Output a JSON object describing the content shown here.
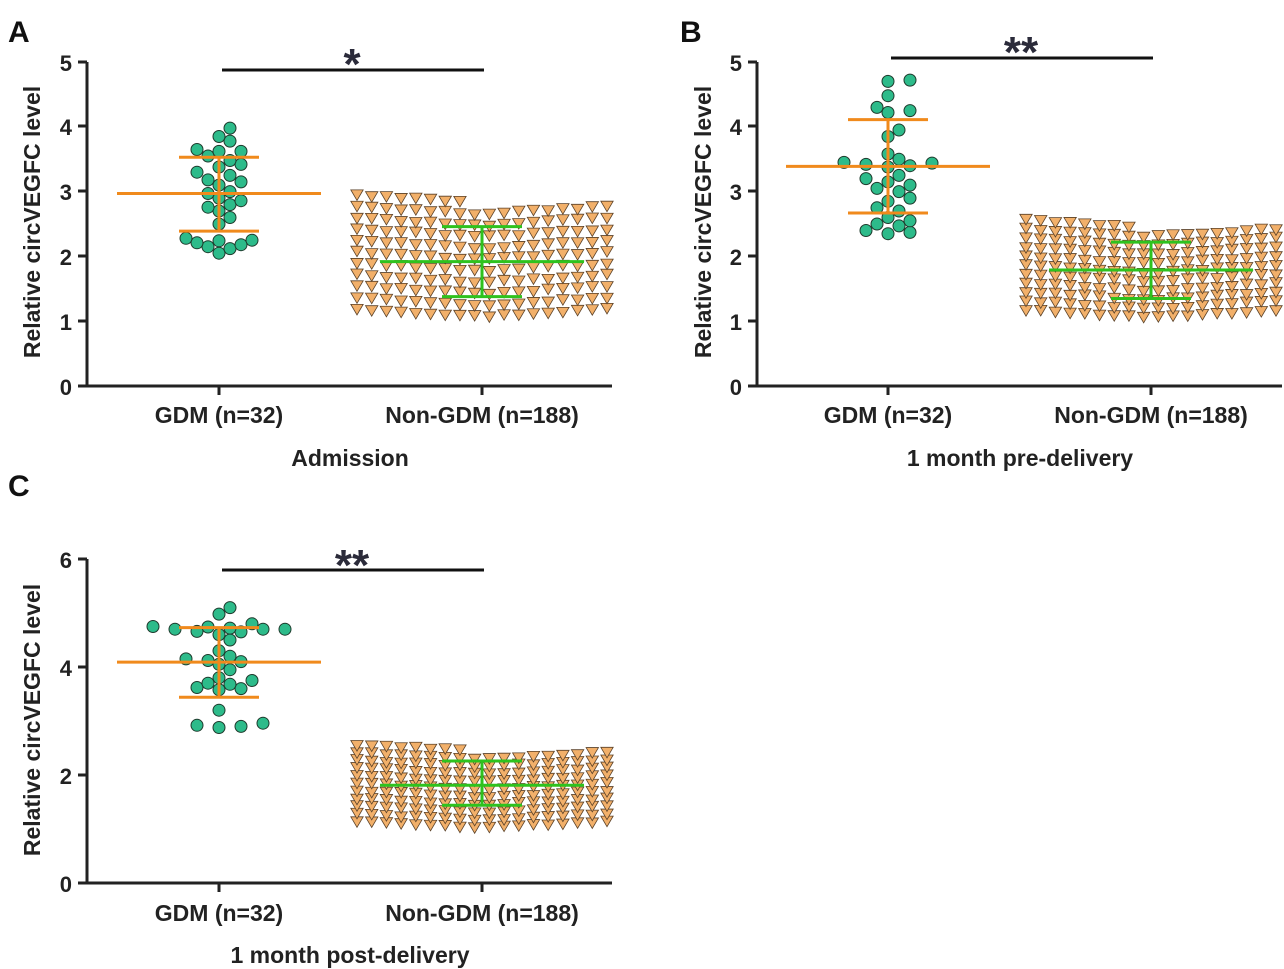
{
  "colors": {
    "gdm_fill": "#2dbb8a",
    "gdm_stroke": "#1e3a2c",
    "gdm_errorbar": "#f08a1c",
    "non_fill": "#f2b06a",
    "non_stroke": "#5a4128",
    "non_errorbar": "#2ec21e",
    "axis": "#222222",
    "text": "#222222",
    "significance": "#2b2b3a"
  },
  "chart_data": [
    {
      "panel_label": "A",
      "type": "scatter",
      "title": "",
      "xlabel": "Admission",
      "ylabel": "Relative circVEGFC level",
      "ylim": [
        0,
        5
      ],
      "yticks": [
        "0",
        "1",
        "2",
        "3",
        "4",
        "5"
      ],
      "categories": [
        "GDM (n=32)",
        "Non-GDM (n=188)"
      ],
      "significance": "*",
      "grid": false,
      "groups": [
        {
          "n": 32,
          "marker": "circle",
          "mean": 2.97,
          "sd_low": 2.39,
          "sd_high": 3.53,
          "values": [
            2.05,
            2.12,
            2.15,
            2.18,
            2.21,
            2.24,
            2.25,
            2.28,
            2.5,
            2.6,
            2.7,
            2.76,
            2.8,
            2.86,
            2.9,
            2.97,
            3.0,
            3.1,
            3.15,
            3.18,
            3.25,
            3.3,
            3.38,
            3.42,
            3.48,
            3.55,
            3.62,
            3.62,
            3.65,
            3.78,
            3.85,
            3.98
          ]
        },
        {
          "n": 188,
          "marker": "triangle-down",
          "mean": 1.92,
          "sd_low": 1.38,
          "sd_high": 2.46,
          "value_min": 1.07,
          "value_max": 3.0
        }
      ]
    },
    {
      "panel_label": "B",
      "type": "scatter",
      "title": "",
      "xlabel": "1 month pre-delivery",
      "ylabel": "Relative circVEGFC level",
      "ylim": [
        0,
        5
      ],
      "yticks": [
        "0",
        "1",
        "2",
        "3",
        "4",
        "5"
      ],
      "categories": [
        "GDM (n=32)",
        "Non-GDM (n=188)"
      ],
      "significance": "**",
      "grid": false,
      "groups": [
        {
          "n": 32,
          "marker": "circle",
          "mean": 3.39,
          "sd_low": 2.67,
          "sd_high": 4.11,
          "values": [
            2.35,
            2.37,
            2.4,
            2.47,
            2.5,
            2.55,
            2.6,
            2.7,
            2.75,
            2.85,
            2.9,
            3.0,
            3.05,
            3.1,
            3.15,
            3.2,
            3.25,
            3.38,
            3.4,
            3.42,
            3.44,
            3.45,
            3.5,
            3.58,
            3.85,
            3.95,
            4.22,
            4.25,
            4.3,
            4.48,
            4.7,
            4.72
          ]
        },
        {
          "n": 188,
          "marker": "triangle-down",
          "mean": 1.79,
          "sd_low": 1.35,
          "sd_high": 2.22,
          "value_min": 1.05,
          "value_max": 2.58
        }
      ]
    },
    {
      "panel_label": "C",
      "type": "scatter",
      "title": "",
      "xlabel": "1 month post-delivery",
      "ylabel": "Relative circVEGFC level",
      "ylim": [
        0,
        6
      ],
      "yticks": [
        "0",
        "2",
        "4",
        "6"
      ],
      "categories": [
        "GDM (n=32)",
        "Non-GDM (n=188)"
      ],
      "significance": "**",
      "grid": false,
      "groups": [
        {
          "n": 32,
          "marker": "circle",
          "mean": 4.09,
          "sd_low": 3.44,
          "sd_high": 4.73,
          "values": [
            2.88,
            2.9,
            2.92,
            2.96,
            3.2,
            3.58,
            3.6,
            3.62,
            3.68,
            3.7,
            3.75,
            3.8,
            3.95,
            4.05,
            4.1,
            4.12,
            4.15,
            4.2,
            4.3,
            4.5,
            4.6,
            4.65,
            4.66,
            4.7,
            4.7,
            4.7,
            4.72,
            4.74,
            4.75,
            4.8,
            4.98,
            5.1
          ]
        },
        {
          "n": 188,
          "marker": "triangle-down",
          "mean": 1.81,
          "sd_low": 1.44,
          "sd_high": 2.26,
          "value_min": 1.02,
          "value_max": 2.58
        }
      ]
    }
  ]
}
